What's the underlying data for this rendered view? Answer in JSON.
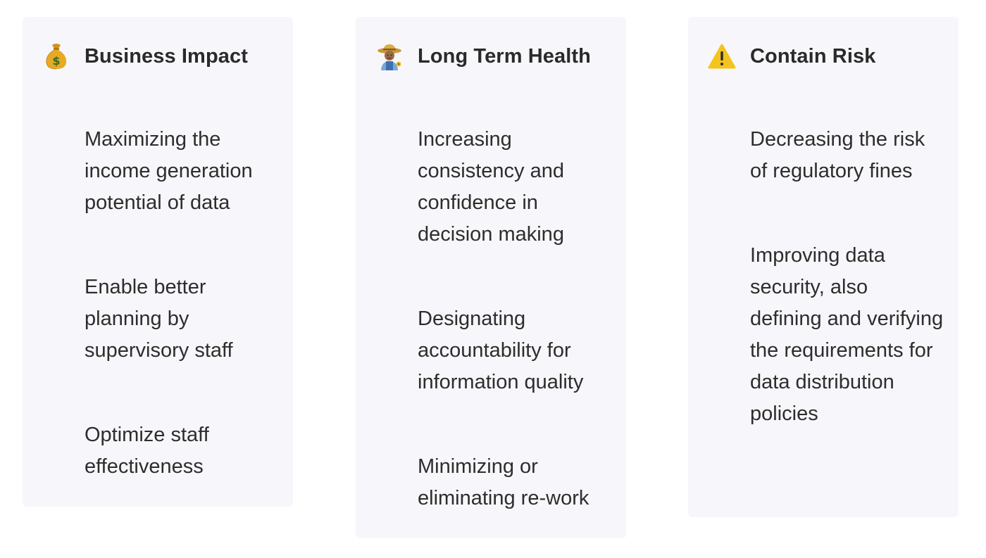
{
  "cards": [
    {
      "title": "Business Impact",
      "icon": "money-bag-icon",
      "items": [
        "Maximizing the income generation potential of data",
        "Enable better planning by supervisory staff",
        "Optimize staff effectiveness"
      ]
    },
    {
      "title": "Long Term Health",
      "icon": "farmer-icon",
      "items": [
        "Increasing consistency and confidence in decision making",
        "Designating accountability for information quality",
        "Minimizing or eliminating re-work"
      ]
    },
    {
      "title": "Contain Risk",
      "icon": "warning-icon",
      "items": [
        "Decreasing the risk of regulatory fines",
        "Improving data security, also defining and verifying the requirements for data distribution policies"
      ]
    }
  ],
  "colors": {
    "card_background": "#f7f7fb",
    "text": "#2b2b2b",
    "warning_yellow": "#f3c41d",
    "money_gold": "#e3a21a"
  }
}
